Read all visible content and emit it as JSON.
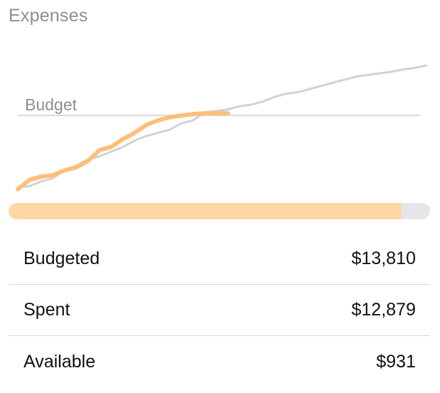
{
  "section": {
    "title": "Expenses"
  },
  "chart_data": {
    "type": "line",
    "budget_label": "Budget",
    "budget_value": 13810,
    "series": [
      {
        "color": "#d1d1d6",
        "values": [
          9200,
          9300,
          9600,
          9800,
          10300,
          10600,
          11000,
          11200,
          11500,
          11800,
          12200,
          12500,
          12700,
          12900,
          13300,
          13500,
          14000,
          14100,
          14200,
          14400,
          14500,
          14700,
          15000,
          15200,
          15300,
          15500,
          15700,
          15900,
          16100,
          16300,
          16400,
          16500,
          16600,
          16750,
          16850,
          17000
        ]
      },
      {
        "color": "#ffbf7a",
        "values": [
          9100,
          9700,
          9900,
          10000,
          10300,
          10500,
          10900,
          11600,
          11800,
          12300,
          12700,
          13200,
          13500,
          13700,
          13800,
          13900,
          13950,
          13950,
          13950
        ]
      }
    ]
  },
  "progress": {
    "fraction": 0.932,
    "fill_color": "#ffd7a3",
    "track_color": "#e5e5ea"
  },
  "summary": [
    {
      "label": "Budgeted",
      "value": "$13,810"
    },
    {
      "label": "Spent",
      "value": "$12,879"
    },
    {
      "label": "Available",
      "value": "$931"
    }
  ]
}
